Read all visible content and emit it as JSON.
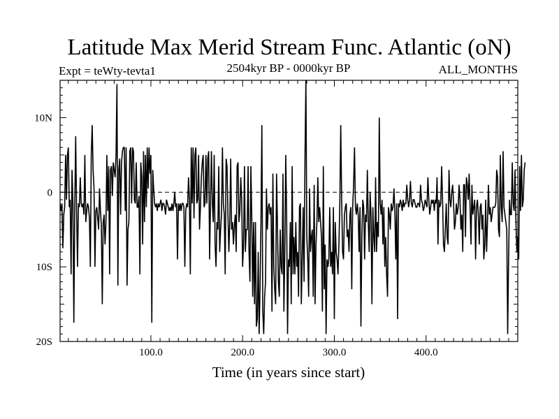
{
  "chart_data": {
    "type": "line",
    "title": "Latitude Max Merid Stream Func. Atlantic (oN)",
    "subtitle_left": "Expt = teWty-tevta1",
    "subtitle_center": "2504kyr BP - 0000kyr BP",
    "subtitle_right": "ALL_MONTHS",
    "xlabel": "Time (in years since start)",
    "ylabel": "",
    "xlim": [
      1,
      500
    ],
    "ylim": [
      -20,
      15
    ],
    "x_ticks": [
      {
        "value": 100,
        "label": "100.0"
      },
      {
        "value": 200,
        "label": "200.0"
      },
      {
        "value": 300,
        "label": "300.0"
      },
      {
        "value": 400,
        "label": "400.0"
      }
    ],
    "y_ticks": [
      {
        "value": 10,
        "label": "10N"
      },
      {
        "value": 0,
        "label": "0"
      },
      {
        "value": -10,
        "label": "10S"
      },
      {
        "value": -20,
        "label": "20S"
      }
    ],
    "zero_line": 0,
    "series": [
      {
        "name": "teWty-tevta1",
        "x_start": 1,
        "x_step": 1,
        "values": [
          -1.5,
          -2.5,
          -1.5,
          -7.5,
          -3,
          -2,
          5,
          -1,
          5,
          6,
          -2,
          -1,
          -11,
          3,
          -1.5,
          -17.5,
          -2,
          7.5,
          -2.5,
          -10,
          -1.5,
          -2,
          2,
          -1.5,
          -2,
          -1.5,
          -3,
          5,
          -4,
          -2.5,
          -1.5,
          -2,
          -3.5,
          -10,
          5,
          9,
          3,
          0.5,
          -10,
          -2.5,
          -2,
          -3.5,
          -5,
          0.5,
          -2.5,
          -4.5,
          -15,
          -4,
          -3,
          -7,
          -4,
          5,
          -2.5,
          3.5,
          -11,
          3,
          3.5,
          -0.5,
          4,
          3,
          2,
          5,
          14.5,
          -12.5,
          3,
          4.5,
          -3,
          4,
          5.5,
          6,
          6,
          -2.5,
          6,
          -12.5,
          -5,
          -4,
          5.5,
          6,
          -1.5,
          6,
          5.5,
          -1,
          -1.5,
          4,
          -2,
          -2,
          -0.5,
          -11,
          4,
          2,
          -7,
          5.5,
          -4,
          5,
          -2,
          6,
          0.5,
          6,
          2.5,
          5,
          -17.5,
          3,
          0.5,
          -1.5,
          -2,
          -1.5,
          -2.5,
          -1.5,
          -2,
          -1.5,
          -1,
          -2.5,
          -1.5,
          -1.5,
          -2,
          -3,
          -1,
          -1.5,
          -2,
          -2.5,
          -2,
          -2.5,
          -1.5,
          -2.5,
          -1.5,
          0,
          -2,
          -1.5,
          -9,
          -1.5,
          -2.5,
          -1.5,
          -2.5,
          -1.5,
          -1.5,
          -2,
          -10,
          -2.5,
          -1.5,
          -2,
          2,
          -1,
          -11,
          6,
          -1.5,
          6,
          -3.5,
          5,
          6,
          -1.5,
          -1,
          5,
          -5,
          -2,
          2,
          4,
          5,
          -2,
          -1.5,
          5,
          -1.5,
          4.5,
          5.5,
          -9,
          -1.5,
          5.5,
          -1.5,
          -4,
          5,
          -7,
          -10,
          -4,
          -5,
          3.5,
          -8,
          -5,
          -3,
          6,
          -1.5,
          -3,
          -11,
          4.5,
          3.5,
          -3,
          -8,
          -4,
          4.5,
          -5,
          -4,
          -7,
          -4.5,
          -3,
          -8,
          3.5,
          4,
          -4,
          -2.5,
          2,
          -1,
          -10,
          -7,
          3.5,
          -8,
          -5,
          -5,
          3.5,
          -8,
          -12,
          3.5,
          -3.5,
          -14,
          -4,
          -15,
          -4,
          -18,
          -17,
          -8,
          -19,
          -13,
          -4,
          9,
          -16,
          -19,
          -14,
          -12,
          0.5,
          -5,
          -2,
          -1.5,
          -3,
          -2,
          -16,
          2.5,
          -10,
          -13,
          -15,
          2.5,
          -4.5,
          -12,
          -14,
          -5,
          -10,
          -11,
          2.5,
          -16,
          -8,
          5,
          -3,
          -19,
          -9,
          -10,
          -4,
          -15,
          3.5,
          -11,
          -6,
          -11,
          -4,
          -10,
          -8,
          -14,
          -2,
          -1.5,
          -15,
          -9,
          -2,
          -12,
          4.5,
          15,
          -6,
          -9,
          -14,
          0.5,
          -8,
          -6,
          -5,
          -14,
          1,
          -15,
          -7,
          -4,
          2,
          -4,
          -2,
          -4,
          -6,
          -16,
          3.5,
          -13,
          -7,
          -19,
          -9,
          -10,
          -9,
          -2,
          -10,
          -8,
          -11,
          -2,
          -17,
          -4,
          -8,
          -9,
          -11,
          -7,
          -1.5,
          9,
          -1,
          -8,
          -9,
          -3,
          -2,
          -1.5,
          -6,
          -5,
          -8,
          -3,
          -2,
          -13,
          -2,
          1,
          6,
          -2,
          -3,
          -1.5,
          -3,
          -8,
          -2,
          -18,
          -6,
          -1,
          -2,
          -9,
          -3,
          -4,
          3,
          -4,
          -8,
          0,
          -3,
          -15,
          -2,
          -6,
          -8,
          2,
          -8,
          -4,
          -6,
          10,
          -1.5,
          -3,
          -1,
          -7,
          -2,
          -10,
          -6,
          -11,
          -14,
          -2,
          -3,
          -5,
          -1.5,
          -2.5,
          -2,
          0.5,
          -2.5,
          -9,
          -1.5,
          -17,
          -1.5,
          -2,
          -1,
          -1.5,
          -2.5,
          -1,
          -2,
          -1.5,
          -1.5,
          1,
          -1,
          -2,
          -1,
          1.5,
          -1.5,
          -2,
          -1,
          -1,
          -1.5,
          -2,
          -2,
          -1.5,
          -1.5,
          -2,
          1,
          -1,
          -1.5,
          -2.5,
          -2,
          -1,
          -1.5,
          -2,
          2,
          -1,
          -3,
          -2,
          -1,
          -1.5,
          -1,
          -2.5,
          -1,
          -1.5,
          2,
          -7,
          -1,
          -2,
          -1.5,
          3.5,
          -1,
          -7,
          -8,
          -5,
          -1.5,
          -6,
          -7,
          3,
          -1,
          -2,
          0,
          1,
          -1.5,
          -5,
          -4,
          -1.5,
          -3,
          -2,
          1,
          -1,
          -5,
          -3,
          -8,
          1,
          1,
          -6,
          2,
          1,
          -1,
          2.5,
          -2,
          -7,
          1,
          -3,
          -2,
          -1,
          -9,
          -2,
          -1,
          -3,
          -7,
          -2,
          -1.5,
          -5,
          -3,
          -9,
          -7,
          -1,
          -8,
          -4,
          1,
          -3,
          -2,
          -4,
          -3,
          -2,
          -2,
          -2,
          -1.5,
          3,
          2,
          -5,
          -6,
          5,
          -2,
          -4,
          5.5,
          -2,
          -3,
          -4,
          -5,
          -19,
          -9,
          -1,
          -3,
          -3,
          4,
          -1.5,
          -2.5,
          3,
          -4,
          -8,
          -6,
          -9,
          3.5,
          -2.5,
          5,
          -2,
          -1,
          3,
          4
        ]
      }
    ]
  }
}
